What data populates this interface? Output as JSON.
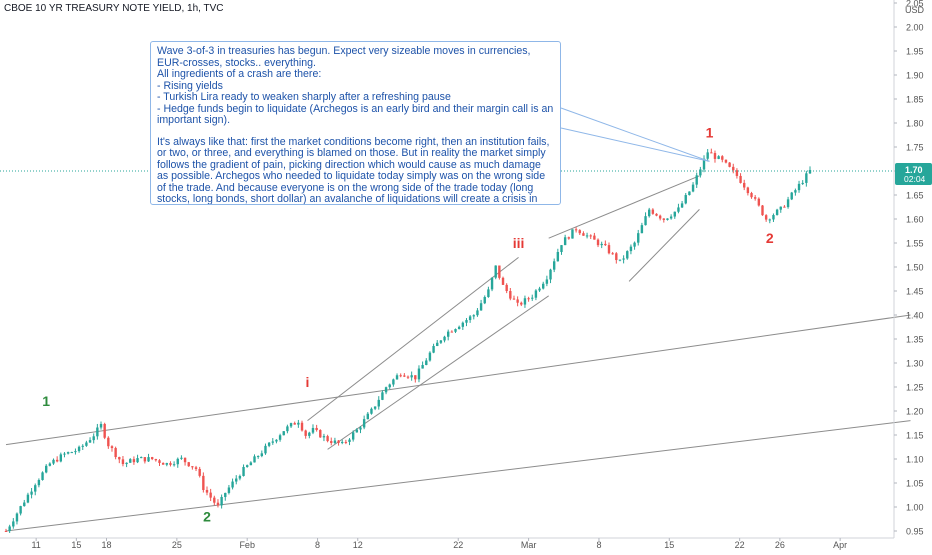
{
  "title": "CBOE 10 YR TREASURY NOTE YIELD, 1h, TVC",
  "currency": "USD",
  "price_tag": {
    "value": "1.70",
    "time": "02:04"
  },
  "colors": {
    "up": "#26a69a",
    "down": "#ef5350",
    "note_text": "#1e53a9",
    "note_border": "#8fb7e8",
    "wave_green": "#2e8b3d",
    "wave_red": "#e53935",
    "price_tag_bg": "#26a69a",
    "axis_text": "#555555",
    "lines": "#8c8c8c"
  },
  "note": {
    "paragraph_1": "Wave 3-of-3 in treasuries has begun. Expect very sizeable moves in currencies, EUR-crosses, stocks.. everything.\nAll ingredients of a crash are there:\n- Rising yields\n- Turkish Lira ready to weaken sharply after a refreshing pause\n- Hedge funds begin to liquidate (Archegos is an early bird and their margin call is an important sign).",
    "paragraph_2": "It's always like that: first the market conditions become right, then an institution fails, or two, or three, and everything is blamed on those. But in reality the market simply follows the gradient of pain, picking direction which would cause as much damage as possible. Archegos who needed to liquidate today simply was on the wrong side of the trade. And because everyone is on the wrong side of the trade today (long stocks, long bonds, short dollar) an avalanche of liquidations will create a crisis in the market very soon."
  },
  "chart_data": {
    "type": "candlestick",
    "title": "CBOE 10 YR TREASURY NOTE YIELD, 1h, TVC",
    "x_tick_labels": [
      "11",
      "15",
      "18",
      "25",
      "Feb",
      "8",
      "12",
      "22",
      "Mar",
      "8",
      "15",
      "22",
      "26",
      "Apr"
    ],
    "y_tick_labels": [
      "0.95",
      "1.00",
      "1.05",
      "1.10",
      "1.15",
      "1.20",
      "1.25",
      "1.30",
      "1.35",
      "1.40",
      "1.45",
      "1.50",
      "1.55",
      "1.60",
      "1.65",
      "1.70",
      "1.75",
      "1.80",
      "1.85",
      "1.90",
      "1.95",
      "2.00",
      "2.05"
    ],
    "ylim": [
      0.94,
      2.06
    ],
    "grid": false,
    "price_path": [
      [
        0,
        0.95
      ],
      [
        2,
        1.0
      ],
      [
        4,
        1.05
      ],
      [
        6,
        1.09
      ],
      [
        8,
        1.11
      ],
      [
        10,
        1.12
      ],
      [
        12,
        1.15
      ],
      [
        13,
        1.17
      ],
      [
        14,
        1.13
      ],
      [
        16,
        1.09
      ],
      [
        18,
        1.1
      ],
      [
        20,
        1.1
      ],
      [
        22,
        1.09
      ],
      [
        24,
        1.1
      ],
      [
        26,
        1.08
      ],
      [
        27,
        1.04
      ],
      [
        28,
        1.02
      ],
      [
        29,
        1.0
      ],
      [
        30,
        1.03
      ],
      [
        32,
        1.07
      ],
      [
        34,
        1.1
      ],
      [
        36,
        1.13
      ],
      [
        38,
        1.16
      ],
      [
        40,
        1.18
      ],
      [
        41,
        1.15
      ],
      [
        42,
        1.16
      ],
      [
        44,
        1.14
      ],
      [
        46,
        1.13
      ],
      [
        48,
        1.16
      ],
      [
        50,
        1.2
      ],
      [
        52,
        1.25
      ],
      [
        54,
        1.28
      ],
      [
        56,
        1.27
      ],
      [
        58,
        1.32
      ],
      [
        60,
        1.36
      ],
      [
        62,
        1.38
      ],
      [
        64,
        1.4
      ],
      [
        66,
        1.45
      ],
      [
        67,
        1.5
      ],
      [
        68,
        1.46
      ],
      [
        70,
        1.42
      ],
      [
        72,
        1.44
      ],
      [
        74,
        1.48
      ],
      [
        76,
        1.55
      ],
      [
        78,
        1.58
      ],
      [
        80,
        1.56
      ],
      [
        82,
        1.54
      ],
      [
        84,
        1.51
      ],
      [
        86,
        1.55
      ],
      [
        88,
        1.62
      ],
      [
        90,
        1.6
      ],
      [
        92,
        1.62
      ],
      [
        94,
        1.67
      ],
      [
        96,
        1.74
      ],
      [
        98,
        1.72
      ],
      [
        100,
        1.69
      ],
      [
        102,
        1.65
      ],
      [
        104,
        1.6
      ],
      [
        106,
        1.62
      ],
      [
        108,
        1.66
      ],
      [
        110,
        1.7
      ]
    ],
    "x_start": "2021-01-08",
    "x_end": "2021-03-29",
    "x_tick_dates": [
      "2021-01-11",
      "2021-01-15",
      "2021-01-18",
      "2021-01-25",
      "2021-02-01",
      "2021-02-08",
      "2021-02-12",
      "2021-02-22",
      "2021-03-01",
      "2021-03-08",
      "2021-03-15",
      "2021-03-22",
      "2021-03-26",
      "2021-04-01"
    ],
    "trendlines": [
      {
        "from": [
          "2021-01-08",
          1.13
        ],
        "to": [
          "2021-04-08",
          1.4
        ]
      },
      {
        "from": [
          "2021-01-08",
          0.95
        ],
        "to": [
          "2021-04-08",
          1.18
        ]
      },
      {
        "from": [
          "2021-02-07",
          1.18
        ],
        "to": [
          "2021-02-28",
          1.52
        ]
      },
      {
        "from": [
          "2021-02-09",
          1.12
        ],
        "to": [
          "2021-03-03",
          1.44
        ]
      },
      {
        "from": [
          "2021-03-03",
          1.56
        ],
        "to": [
          "2021-03-18",
          1.69
        ]
      },
      {
        "from": [
          "2021-03-11",
          1.47
        ],
        "to": [
          "2021-03-18",
          1.62
        ]
      }
    ],
    "wave_labels": [
      {
        "text": "1",
        "date": "2021-01-12",
        "y": 1.21,
        "color": "green"
      },
      {
        "text": "2",
        "date": "2021-01-28",
        "y": 0.97,
        "color": "green"
      },
      {
        "text": "i",
        "date": "2021-02-07",
        "y": 1.25,
        "color": "red"
      },
      {
        "text": "iii",
        "date": "2021-02-28",
        "y": 1.54,
        "color": "red"
      },
      {
        "text": "1",
        "date": "2021-03-19",
        "y": 1.77,
        "color": "red"
      },
      {
        "text": "2",
        "date": "2021-03-25",
        "y": 1.55,
        "color": "red"
      }
    ],
    "current_price": 1.7
  }
}
